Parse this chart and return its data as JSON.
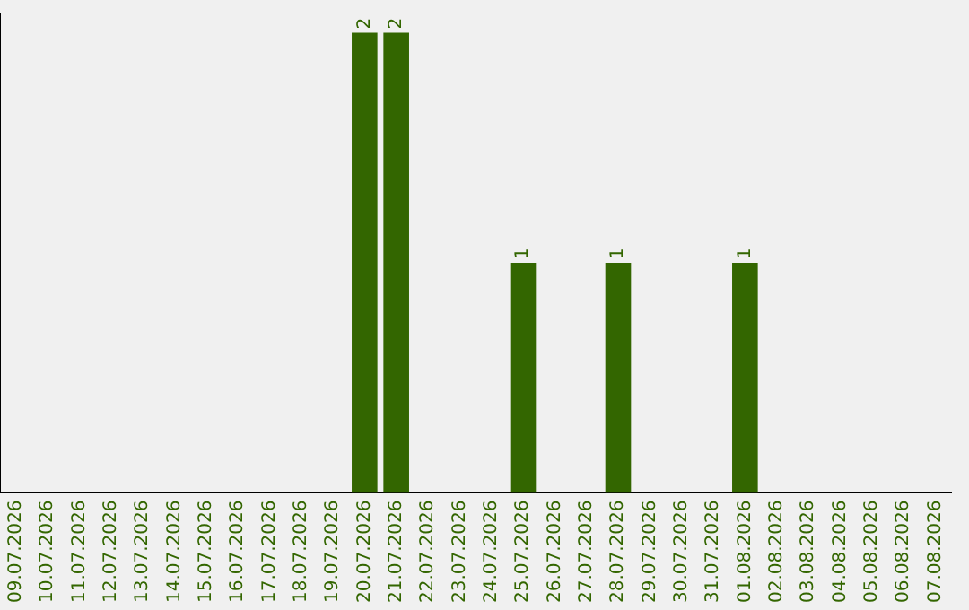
{
  "chart_data": {
    "type": "bar",
    "categories": [
      "09.07.2026",
      "10.07.2026",
      "11.07.2026",
      "12.07.2026",
      "13.07.2026",
      "14.07.2026",
      "15.07.2026",
      "16.07.2026",
      "17.07.2026",
      "18.07.2026",
      "19.07.2026",
      "20.07.2026",
      "21.07.2026",
      "22.07.2026",
      "23.07.2026",
      "24.07.2026",
      "25.07.2026",
      "26.07.2026",
      "27.07.2026",
      "28.07.2026",
      "29.07.2026",
      "30.07.2026",
      "31.07.2026",
      "01.08.2026",
      "02.08.2026",
      "03.08.2026",
      "04.08.2026",
      "05.08.2026",
      "06.08.2026",
      "07.08.2026"
    ],
    "values": [
      0,
      0,
      0,
      0,
      0,
      0,
      0,
      0,
      0,
      0,
      0,
      2,
      2,
      0,
      0,
      0,
      1,
      0,
      0,
      1,
      0,
      0,
      0,
      1,
      0,
      0,
      0,
      0,
      0,
      0
    ],
    "value_labels": [
      null,
      null,
      null,
      null,
      null,
      null,
      null,
      null,
      null,
      null,
      null,
      "2",
      "2",
      null,
      null,
      null,
      "1",
      null,
      null,
      "1",
      null,
      null,
      null,
      "1",
      null,
      null,
      null,
      null,
      null,
      null
    ],
    "color": "#336600",
    "grid": false,
    "legend": false,
    "tick_labels": "x"
  }
}
